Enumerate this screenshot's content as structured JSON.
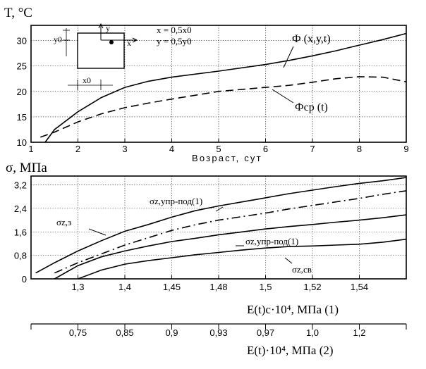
{
  "top_chart": {
    "y_axis_label": "T, °C",
    "x_axis_label": "Возраст, сут",
    "x_ticks": [
      1,
      2,
      3,
      4,
      5,
      6,
      7,
      8,
      9
    ],
    "y_ticks": [
      10,
      15,
      20,
      25,
      30
    ],
    "inset": {
      "axis_y": "y",
      "axis_x": "x",
      "dim_y": "y0",
      "dim_x": "x0",
      "formula_x": "x = 0,5x0",
      "formula_y": "y = 0,5y0"
    },
    "series_labels": {
      "phi": "Ф (x,y,t)",
      "phi_avg": "Фср (t)"
    }
  },
  "bottom_chart": {
    "y_axis_label": "σ, МПа",
    "y_ticks": [
      "0",
      "0,8",
      "1,6",
      "2,4",
      "3,2"
    ],
    "x_ticks_1": [
      "1,3",
      "1,4",
      "1,45",
      "1,48",
      "1,5",
      "1,52",
      "1,54"
    ],
    "x_ticks_2": [
      "0,75",
      "0,85",
      "0,9",
      "0,93",
      "0,97",
      "1,0",
      "1,2"
    ],
    "x_axis_label_1": "E(t)с·10⁴, МПа  (1)",
    "x_axis_label_2": "E(t)·10⁴, МПа  (2)",
    "series_labels": {
      "upr_top": "σz,упр-под(1)",
      "z3": "σz,з",
      "upr_mid": "σz,упр-под(1)",
      "sv": "σz,св"
    }
  },
  "chart_data": [
    {
      "type": "line",
      "title": "",
      "xlabel": "Возраст, сут",
      "ylabel": "T, °C",
      "xlim": [
        1,
        9
      ],
      "ylim": [
        10,
        33
      ],
      "grid": true,
      "series": [
        {
          "name": "Ф (x,y,t)",
          "style": "solid",
          "x": [
            1.3,
            1.5,
            2,
            2.5,
            3,
            3.5,
            4,
            5,
            6,
            6.5,
            7,
            7.5,
            8,
            8.5,
            9
          ],
          "y": [
            10,
            12.5,
            16,
            18.8,
            20.8,
            22,
            22.8,
            24,
            25.3,
            26.1,
            27,
            28,
            29.1,
            30.2,
            31.4
          ]
        },
        {
          "name": "Фср (t)",
          "style": "dashed",
          "x": [
            1.2,
            1.5,
            2,
            2.5,
            3,
            3.5,
            4,
            5,
            6,
            6.5,
            7,
            7.5,
            8,
            8.5,
            9
          ],
          "y": [
            11,
            12,
            14,
            15.6,
            16.8,
            17.7,
            18.5,
            20,
            20.8,
            21.2,
            21.8,
            22.5,
            22.9,
            22.8,
            21.9
          ]
        }
      ]
    },
    {
      "type": "line",
      "title": "",
      "ylabel": "σ, МПа",
      "xlabel": "E(t)с·10⁴, МПа (1); E(t)·10⁴, МПа (2)",
      "x_categories": [
        "",
        "1,3",
        "1,4",
        "1,45",
        "1,48",
        "1,5",
        "1,52",
        "1,54",
        ""
      ],
      "ylim": [
        0,
        3.5
      ],
      "grid": true,
      "series": [
        {
          "name": "σz,з",
          "style": "solid",
          "x": [
            0.1,
            0.5,
            1,
            1.5,
            2,
            2.5,
            3,
            3.5,
            4,
            4.5,
            5,
            5.5,
            6,
            6.5,
            7,
            7.5,
            8
          ],
          "y": [
            0.2,
            0.55,
            0.95,
            1.3,
            1.62,
            1.85,
            2.1,
            2.32,
            2.48,
            2.62,
            2.76,
            2.9,
            3.02,
            3.14,
            3.25,
            3.34,
            3.45
          ]
        },
        {
          "name": "σz,упр-под(1)",
          "style": "dash-dot",
          "x": [
            0.5,
            1,
            1.5,
            2,
            2.5,
            3,
            3.5,
            4,
            4.5,
            5,
            5.5,
            6,
            6.5,
            7,
            7.5,
            8
          ],
          "y": [
            0.2,
            0.55,
            0.85,
            1.15,
            1.4,
            1.65,
            1.84,
            2.0,
            2.12,
            2.24,
            2.38,
            2.5,
            2.62,
            2.74,
            2.88,
            3.0
          ]
        },
        {
          "name": "σz,упр-под(1)",
          "style": "solid",
          "x": [
            0.5,
            1,
            1.5,
            2,
            2.5,
            3,
            3.5,
            4,
            4.5,
            5,
            5.5,
            6,
            6.5,
            7,
            7.5,
            8
          ],
          "y": [
            0.0,
            0.45,
            0.75,
            0.95,
            1.12,
            1.27,
            1.38,
            1.5,
            1.6,
            1.7,
            1.78,
            1.85,
            1.93,
            2.0,
            2.08,
            2.18
          ]
        },
        {
          "name": "σz,св",
          "style": "solid",
          "x": [
            1.0,
            1.5,
            2,
            2.5,
            3,
            3.5,
            4,
            4.5,
            5,
            5.5,
            6,
            6.5,
            7,
            7.5,
            8
          ],
          "y": [
            0.0,
            0.3,
            0.5,
            0.62,
            0.72,
            0.82,
            0.9,
            0.98,
            1.05,
            1.1,
            1.12,
            1.15,
            1.18,
            1.25,
            1.35
          ]
        }
      ]
    }
  ]
}
